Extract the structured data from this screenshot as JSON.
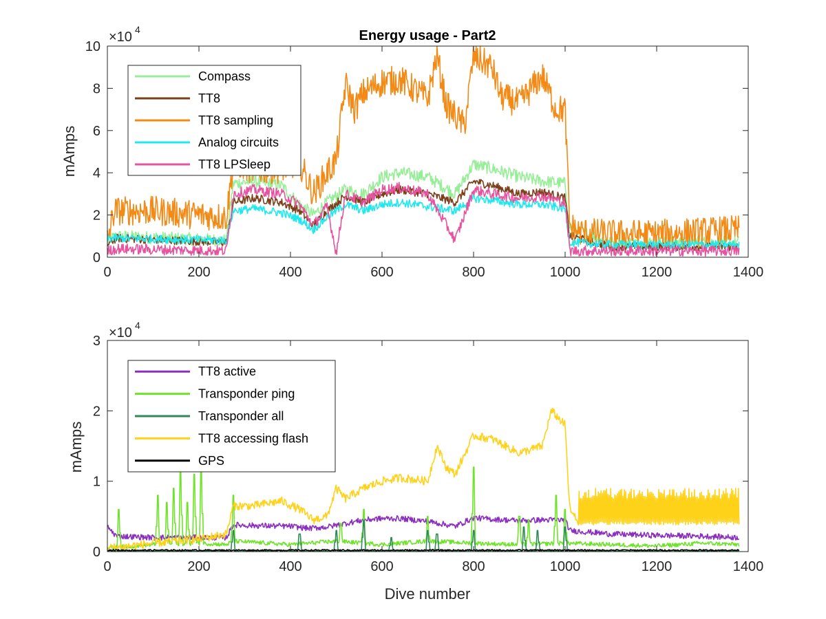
{
  "chart_data": [
    {
      "type": "line",
      "title": "Energy usage - Part2",
      "xlabel": "",
      "ylabel": "mAmps",
      "xlim": [
        0,
        1400
      ],
      "ylim": [
        0,
        10
      ],
      "y_multiplier": "×10",
      "y_exponent": "4",
      "xticks": [
        "0",
        "200",
        "400",
        "600",
        "800",
        "1000",
        "1200",
        "1400"
      ],
      "yticks": [
        "0",
        "2",
        "4",
        "6",
        "8",
        "10"
      ],
      "grid": false,
      "legend_position": "top-left",
      "series": [
        {
          "name": "Compass",
          "color": "#98ee98",
          "noise": 0.3,
          "points": [
            [
              0,
              0.8
            ],
            [
              20,
              1.0
            ],
            [
              260,
              0.8
            ],
            [
              275,
              3.5
            ],
            [
              320,
              3.6
            ],
            [
              380,
              3.4
            ],
            [
              420,
              2.5
            ],
            [
              450,
              2.0
            ],
            [
              480,
              2.6
            ],
            [
              520,
              3.2
            ],
            [
              560,
              3.0
            ],
            [
              600,
              3.8
            ],
            [
              640,
              4.0
            ],
            [
              700,
              3.8
            ],
            [
              760,
              3.0
            ],
            [
              800,
              4.4
            ],
            [
              840,
              4.2
            ],
            [
              900,
              3.8
            ],
            [
              950,
              3.6
            ],
            [
              1000,
              3.5
            ],
            [
              1010,
              1.4
            ],
            [
              1100,
              0.7
            ],
            [
              1200,
              0.7
            ],
            [
              1300,
              0.7
            ],
            [
              1380,
              0.7
            ]
          ]
        },
        {
          "name": "TT8",
          "color": "#7b3f1a",
          "noise": 0.2,
          "points": [
            [
              0,
              0.6
            ],
            [
              20,
              0.9
            ],
            [
              260,
              0.7
            ],
            [
              275,
              2.6
            ],
            [
              320,
              2.8
            ],
            [
              380,
              2.6
            ],
            [
              420,
              2.2
            ],
            [
              450,
              1.5
            ],
            [
              480,
              2.2
            ],
            [
              520,
              2.9
            ],
            [
              560,
              2.6
            ],
            [
              600,
              3.0
            ],
            [
              640,
              3.2
            ],
            [
              700,
              3.0
            ],
            [
              760,
              2.6
            ],
            [
              800,
              3.6
            ],
            [
              840,
              3.4
            ],
            [
              900,
              3.0
            ],
            [
              950,
              3.1
            ],
            [
              1000,
              2.8
            ],
            [
              1010,
              1.0
            ],
            [
              1100,
              0.5
            ],
            [
              1200,
              0.5
            ],
            [
              1300,
              0.5
            ],
            [
              1380,
              0.5
            ]
          ]
        },
        {
          "name": "TT8 sampling",
          "color": "#f28a15",
          "noise": 0.7,
          "points": [
            [
              0,
              0.8
            ],
            [
              15,
              2.2
            ],
            [
              100,
              2.2
            ],
            [
              200,
              2.0
            ],
            [
              260,
              1.9
            ],
            [
              275,
              4.5
            ],
            [
              320,
              4.1
            ],
            [
              380,
              4.2
            ],
            [
              420,
              4.5
            ],
            [
              450,
              3.0
            ],
            [
              480,
              4.0
            ],
            [
              500,
              4.6
            ],
            [
              520,
              8.2
            ],
            [
              540,
              7.0
            ],
            [
              560,
              7.8
            ],
            [
              600,
              8.3
            ],
            [
              640,
              8.4
            ],
            [
              700,
              7.5
            ],
            [
              720,
              9.6
            ],
            [
              740,
              7.2
            ],
            [
              780,
              6.2
            ],
            [
              800,
              9.5
            ],
            [
              840,
              9.0
            ],
            [
              860,
              7.6
            ],
            [
              900,
              7.3
            ],
            [
              950,
              8.6
            ],
            [
              980,
              7.0
            ],
            [
              1000,
              7.0
            ],
            [
              1010,
              1.5
            ],
            [
              1030,
              1.2
            ],
            [
              1100,
              1.1
            ],
            [
              1200,
              1.1
            ],
            [
              1300,
              1.2
            ],
            [
              1380,
              1.3
            ]
          ]
        },
        {
          "name": "Analog circuits",
          "color": "#21e8ec",
          "noise": 0.2,
          "points": [
            [
              0,
              0.9
            ],
            [
              20,
              0.9
            ],
            [
              260,
              0.8
            ],
            [
              275,
              2.2
            ],
            [
              320,
              2.3
            ],
            [
              380,
              2.1
            ],
            [
              420,
              1.8
            ],
            [
              450,
              1.3
            ],
            [
              480,
              1.9
            ],
            [
              520,
              2.5
            ],
            [
              560,
              2.2
            ],
            [
              600,
              2.5
            ],
            [
              640,
              2.6
            ],
            [
              700,
              2.4
            ],
            [
              760,
              2.2
            ],
            [
              800,
              2.8
            ],
            [
              840,
              2.7
            ],
            [
              900,
              2.5
            ],
            [
              950,
              2.5
            ],
            [
              1000,
              2.3
            ],
            [
              1010,
              0.7
            ],
            [
              1100,
              0.6
            ],
            [
              1200,
              0.6
            ],
            [
              1300,
              0.6
            ],
            [
              1380,
              0.6
            ]
          ]
        },
        {
          "name": "TT8 LPSleep",
          "color": "#e6539f",
          "noise": 0.25,
          "points": [
            [
              0,
              0.3
            ],
            [
              20,
              0.4
            ],
            [
              260,
              0.3
            ],
            [
              275,
              3.0
            ],
            [
              320,
              3.2
            ],
            [
              380,
              3.0
            ],
            [
              420,
              2.5
            ],
            [
              450,
              1.5
            ],
            [
              480,
              2.4
            ],
            [
              500,
              0.2
            ],
            [
              520,
              3.0
            ],
            [
              560,
              2.6
            ],
            [
              600,
              3.2
            ],
            [
              640,
              3.3
            ],
            [
              700,
              3.0
            ],
            [
              760,
              0.8
            ],
            [
              800,
              3.2
            ],
            [
              840,
              3.0
            ],
            [
              900,
              2.8
            ],
            [
              950,
              2.9
            ],
            [
              1000,
              2.6
            ],
            [
              1010,
              0.3
            ],
            [
              1100,
              0.3
            ],
            [
              1200,
              0.3
            ],
            [
              1300,
              0.3
            ],
            [
              1380,
              0.3
            ]
          ]
        }
      ]
    },
    {
      "type": "line",
      "title": "",
      "xlabel": "Dive number",
      "ylabel": "mAmps",
      "xlim": [
        0,
        1400
      ],
      "ylim": [
        0,
        3
      ],
      "y_multiplier": "×10",
      "y_exponent": "4",
      "xticks": [
        "0",
        "200",
        "400",
        "600",
        "800",
        "1000",
        "1200",
        "1400"
      ],
      "yticks": [
        "0",
        "1",
        "2",
        "3"
      ],
      "grid": false,
      "legend_position": "top-left",
      "series": [
        {
          "name": "TT8 active",
          "color": "#8b2fbf",
          "noise": 0.04,
          "points": [
            [
              0,
              0.35
            ],
            [
              20,
              0.22
            ],
            [
              100,
              0.2
            ],
            [
              200,
              0.2
            ],
            [
              260,
              0.2
            ],
            [
              275,
              0.38
            ],
            [
              320,
              0.37
            ],
            [
              400,
              0.36
            ],
            [
              440,
              0.33
            ],
            [
              480,
              0.35
            ],
            [
              520,
              0.4
            ],
            [
              560,
              0.45
            ],
            [
              600,
              0.47
            ],
            [
              640,
              0.47
            ],
            [
              700,
              0.43
            ],
            [
              760,
              0.36
            ],
            [
              800,
              0.48
            ],
            [
              840,
              0.46
            ],
            [
              900,
              0.44
            ],
            [
              950,
              0.45
            ],
            [
              1000,
              0.45
            ],
            [
              1010,
              0.3
            ],
            [
              1100,
              0.25
            ],
            [
              1200,
              0.23
            ],
            [
              1300,
              0.22
            ],
            [
              1380,
              0.2
            ]
          ]
        },
        {
          "name": "Transponder ping",
          "color": "#6fe32a",
          "noise": 0.03,
          "points": [
            [
              0,
              0.05
            ],
            [
              100,
              0.1
            ],
            [
              200,
              0.12
            ],
            [
              260,
              0.1
            ],
            [
              275,
              0.15
            ],
            [
              400,
              0.1
            ],
            [
              500,
              0.15
            ],
            [
              600,
              0.1
            ],
            [
              700,
              0.15
            ],
            [
              800,
              0.12
            ],
            [
              900,
              0.1
            ],
            [
              1000,
              0.12
            ],
            [
              1100,
              0.1
            ],
            [
              1200,
              0.08
            ],
            [
              1300,
              0.12
            ],
            [
              1380,
              0.1
            ]
          ],
          "spikes": [
            [
              25,
              0.6
            ],
            [
              110,
              0.8
            ],
            [
              130,
              0.7
            ],
            [
              145,
              0.9
            ],
            [
              160,
              1.15
            ],
            [
              175,
              0.7
            ],
            [
              190,
              1.1
            ],
            [
              205,
              1.2
            ],
            [
              275,
              0.8
            ],
            [
              510,
              0.4
            ],
            [
              560,
              0.6
            ],
            [
              700,
              0.5
            ],
            [
              800,
              1.2
            ],
            [
              900,
              0.5
            ],
            [
              920,
              0.45
            ],
            [
              980,
              0.8
            ],
            [
              1000,
              0.6
            ]
          ]
        },
        {
          "name": "Transponder all",
          "color": "#2e8b57",
          "noise": 0.01,
          "points": [
            [
              0,
              0.01
            ],
            [
              1380,
              0.01
            ]
          ],
          "spikes": [
            [
              275,
              0.3
            ],
            [
              420,
              0.25
            ],
            [
              500,
              0.3
            ],
            [
              560,
              0.45
            ],
            [
              620,
              0.2
            ],
            [
              700,
              0.3
            ],
            [
              720,
              0.25
            ],
            [
              800,
              0.3
            ],
            [
              910,
              0.35
            ],
            [
              940,
              0.3
            ],
            [
              1000,
              0.35
            ]
          ]
        },
        {
          "name": "TT8 accessing flash",
          "color": "#ffd21a",
          "noise": 0.06,
          "points": [
            [
              0,
              0.05
            ],
            [
              50,
              0.08
            ],
            [
              100,
              0.12
            ],
            [
              200,
              0.18
            ],
            [
              260,
              0.25
            ],
            [
              275,
              0.65
            ],
            [
              320,
              0.65
            ],
            [
              380,
              0.72
            ],
            [
              420,
              0.6
            ],
            [
              450,
              0.45
            ],
            [
              480,
              0.5
            ],
            [
              500,
              0.9
            ],
            [
              520,
              0.75
            ],
            [
              560,
              0.9
            ],
            [
              600,
              1.0
            ],
            [
              640,
              1.05
            ],
            [
              700,
              1.0
            ],
            [
              720,
              1.5
            ],
            [
              740,
              1.2
            ],
            [
              760,
              1.1
            ],
            [
              800,
              1.65
            ],
            [
              840,
              1.6
            ],
            [
              900,
              1.4
            ],
            [
              950,
              1.5
            ],
            [
              970,
              2.0
            ],
            [
              1000,
              1.8
            ],
            [
              1010,
              0.6
            ],
            [
              1030,
              0.4
            ]
          ],
          "band": {
            "from": 1030,
            "to": 1380,
            "low": 0.38,
            "high": 0.9
          }
        },
        {
          "name": "GPS",
          "color": "#000000",
          "noise": 0.01,
          "points": [
            [
              0,
              0.02
            ],
            [
              1380,
              0.02
            ]
          ]
        }
      ]
    }
  ]
}
